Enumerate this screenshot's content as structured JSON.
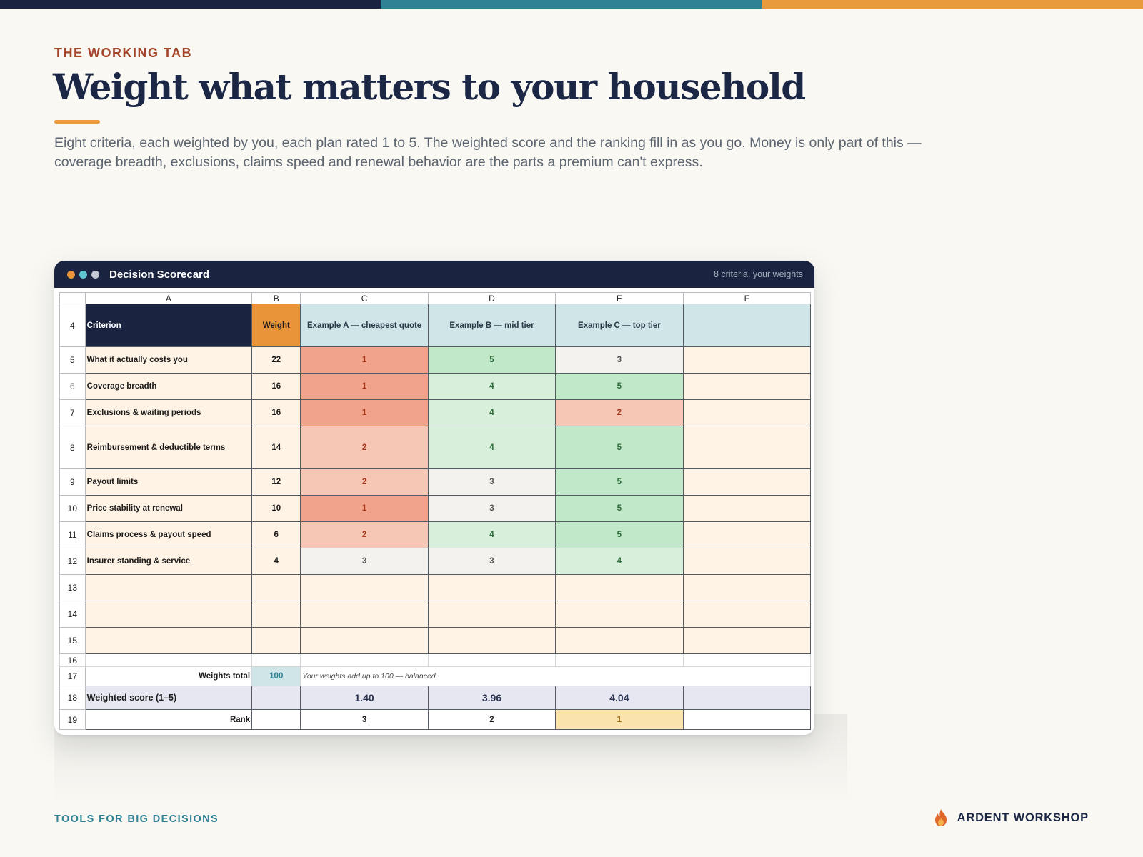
{
  "colors": {
    "navy": "#1a2340",
    "teal": "#2e8294",
    "orange": "#e89a3c",
    "eyebrow": "#a4452a",
    "criteria_bg": "#fff3e5",
    "header_teal_bg": "#cfe5e7",
    "weight_orange": "#e8953a",
    "score_row_bg": "#e6e7f1",
    "rank_highlight": "#fbe3ad",
    "rating_fill": {
      "1": "#f0a48b",
      "2": "#f6c7b5",
      "3": "#f3f2ee",
      "4": "#d8f0db",
      "5": "#c1e8c9"
    },
    "rating_text": {
      "1": "#a8361a",
      "2": "#a8361a",
      "3": "#555555",
      "4": "#2f6e3c",
      "5": "#2f6e3c"
    }
  },
  "header": {
    "eyebrow": "THE WORKING TAB",
    "title": "Weight what matters to your household",
    "lede": "Eight criteria, each weighted by you, each plan rated 1 to 5. The weighted score and the ranking fill in as you go. Money is only part of this — coverage breadth, exclusions, claims speed and renewal behavior are the parts a premium can't express."
  },
  "window": {
    "title": "Decision Scorecard",
    "subtitle": "8 criteria, your weights",
    "dots": [
      "#e8953a",
      "#5fc3d0",
      "#c3c8d2"
    ]
  },
  "sheet": {
    "columns": [
      "A",
      "B",
      "C",
      "D",
      "E",
      "F"
    ],
    "header_row": {
      "row_num": "4",
      "criterion": "Criterion",
      "weight": "Weight",
      "plans": [
        "Example A — cheapest quote",
        "Example B — mid tier",
        "Example C — top tier",
        ""
      ]
    },
    "criteria": [
      {
        "row_num": "5",
        "name": "What it actually costs you",
        "weight": "22",
        "ratings": [
          "1",
          "5",
          "3"
        ]
      },
      {
        "row_num": "6",
        "name": "Coverage breadth",
        "weight": "16",
        "ratings": [
          "1",
          "4",
          "5"
        ]
      },
      {
        "row_num": "7",
        "name": "Exclusions & waiting periods",
        "weight": "16",
        "ratings": [
          "1",
          "4",
          "2"
        ]
      },
      {
        "row_num": "8",
        "name": "Reimbursement & deductible terms",
        "weight": "14",
        "ratings": [
          "2",
          "4",
          "5"
        ]
      },
      {
        "row_num": "9",
        "name": "Payout limits",
        "weight": "12",
        "ratings": [
          "2",
          "3",
          "5"
        ]
      },
      {
        "row_num": "10",
        "name": "Price stability at renewal",
        "weight": "10",
        "ratings": [
          "1",
          "3",
          "5"
        ]
      },
      {
        "row_num": "11",
        "name": "Claims process & payout speed",
        "weight": "6",
        "ratings": [
          "2",
          "4",
          "5"
        ]
      },
      {
        "row_num": "12",
        "name": "Insurer standing & service",
        "weight": "4",
        "ratings": [
          "3",
          "3",
          "4"
        ]
      }
    ],
    "empty_rows": [
      "13",
      "14",
      "15"
    ],
    "spacer_row": "16",
    "weights_total": {
      "row_num": "17",
      "label": "Weights total",
      "value": "100",
      "note": "Your weights add up to 100 — balanced."
    },
    "weighted_score": {
      "row_num": "18",
      "label": "Weighted score (1–5)",
      "values": [
        "1.40",
        "3.96",
        "4.04",
        ""
      ]
    },
    "rank": {
      "row_num": "19",
      "label": "Rank",
      "values": [
        "3",
        "2",
        "1",
        ""
      ],
      "top_index": 2
    }
  },
  "footer": {
    "left": "TOOLS FOR BIG DECISIONS",
    "brand": "ARDENT WORKSHOP",
    "brand_icon": "flame-icon"
  }
}
